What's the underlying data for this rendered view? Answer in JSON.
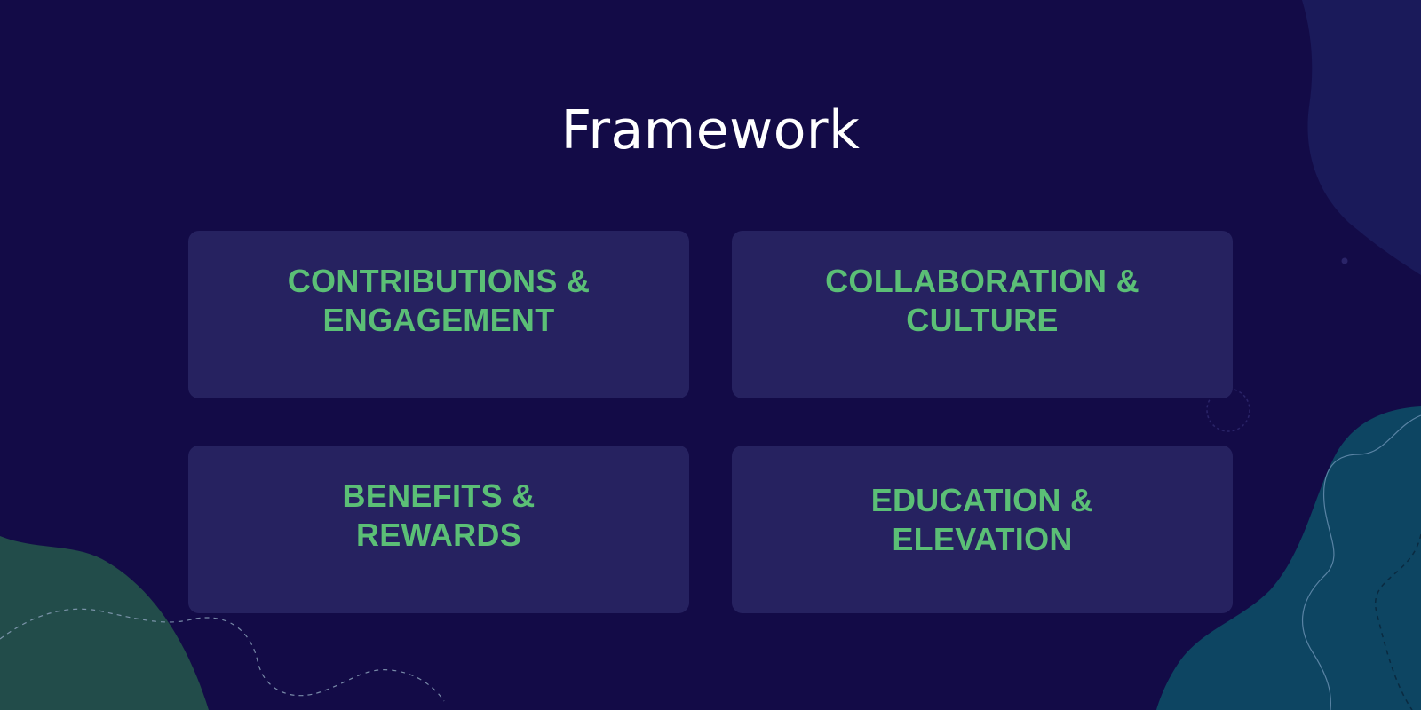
{
  "title": "Framework",
  "cards": [
    {
      "label": "CONTRIBUTIONS &\nENGAGEMENT"
    },
    {
      "label": "COLLABORATION &\nCULTURE"
    },
    {
      "label": "BENEFITS &\nREWARDS"
    },
    {
      "label": "EDUCATION &\nELEVATION"
    }
  ],
  "colors": {
    "background": "#130b47",
    "card": "#262260",
    "card_text": "#5bbf76",
    "title_text": "#ffffff",
    "blob_green": "#224c4a",
    "blob_teal": "#0d4562",
    "blob_indigo": "#1a1a5a"
  }
}
